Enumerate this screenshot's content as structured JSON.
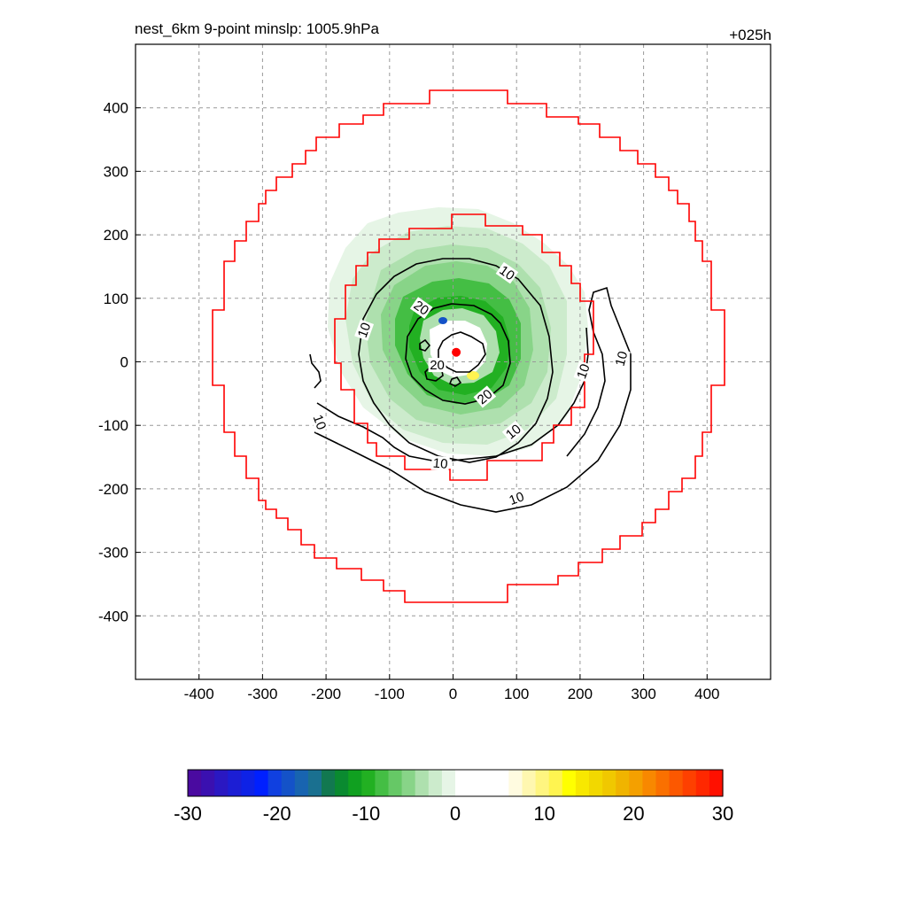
{
  "title_left": "nest_6km  9-point minslp: 1005.9hPa",
  "title_right": "+025h",
  "chart_data": {
    "type": "contour",
    "xlim": [
      -500,
      500
    ],
    "ylim": [
      -500,
      500
    ],
    "x_ticks": [
      -400,
      -300,
      -200,
      -100,
      0,
      100,
      200,
      300,
      400
    ],
    "y_ticks": [
      400,
      300,
      200,
      100,
      0,
      -100,
      -200,
      -300,
      -400
    ],
    "grid": true,
    "grid_style": "dashed",
    "center_marker": {
      "x": 5,
      "y": 15,
      "color": "#ff0000"
    },
    "contour_labels": [
      {
        "text": "10",
        "x": 85,
        "y": 140,
        "angle": 35
      },
      {
        "text": "10",
        "x": -140,
        "y": 50,
        "angle": -70
      },
      {
        "text": "10",
        "x": -210,
        "y": -95,
        "angle": 70
      },
      {
        "text": "10",
        "x": -20,
        "y": -160,
        "angle": 5
      },
      {
        "text": "10",
        "x": 95,
        "y": -110,
        "angle": -40
      },
      {
        "text": "10",
        "x": 205,
        "y": -15,
        "angle": -70
      },
      {
        "text": "10",
        "x": 265,
        "y": 5,
        "angle": -75
      },
      {
        "text": "10",
        "x": 100,
        "y": -215,
        "angle": -20
      },
      {
        "text": "20",
        "x": -50,
        "y": 85,
        "angle": 35
      },
      {
        "text": "20",
        "x": 50,
        "y": -55,
        "angle": -40
      },
      {
        "text": "20",
        "x": -25,
        "y": -5,
        "angle": 0
      }
    ],
    "colorbar": {
      "min": -30,
      "max": 30,
      "ticks": [
        -30,
        -20,
        -10,
        0,
        10,
        20,
        30
      ],
      "colors": [
        "#4a0aa0",
        "#3a10b0",
        "#2a18c2",
        "#1c1ed4",
        "#0e22e6",
        "#0020ff",
        "#1040e0",
        "#1452c8",
        "#1864b0",
        "#1a7090",
        "#127850",
        "#0a8a30",
        "#10a020",
        "#22b022",
        "#44be44",
        "#66c866",
        "#88d488",
        "#aee0ae",
        "#ccebcc",
        "#e6f5e6",
        "#ffffff",
        "#ffffff",
        "#ffffff",
        "#ffffff",
        "#fffbe0",
        "#fff7b0",
        "#fff580",
        "#fff450",
        "#ffff00",
        "#f8e800",
        "#f2d800",
        "#f0c800",
        "#f0b400",
        "#f4a000",
        "#f88800",
        "#fa7000",
        "#fc5800",
        "#fe4000",
        "#ff2800",
        "#ff1000"
      ]
    }
  }
}
